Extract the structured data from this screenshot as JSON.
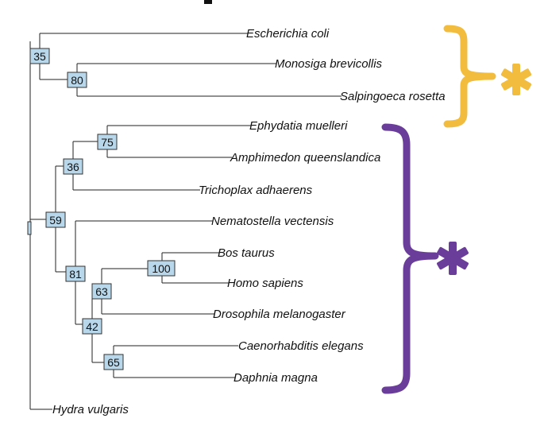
{
  "tree": {
    "leaves": [
      {
        "id": "ecoli",
        "label": "Escherichia coli"
      },
      {
        "id": "mbrev",
        "label": "Monosiga brevicollis"
      },
      {
        "id": "sros",
        "label": "Salpingoeca rosetta"
      },
      {
        "id": "ephy",
        "label": "Ephydatia muelleri"
      },
      {
        "id": "amph",
        "label": "Amphimedon queenslandica"
      },
      {
        "id": "trich",
        "label": "Trichoplax adhaerens"
      },
      {
        "id": "nema",
        "label": "Nematostella vectensis"
      },
      {
        "id": "bos",
        "label": "Bos taurus"
      },
      {
        "id": "homo",
        "label": "Homo sapiens"
      },
      {
        "id": "dros",
        "label": "Drosophila melanogaster"
      },
      {
        "id": "cael",
        "label": "Caenorhabditis elegans"
      },
      {
        "id": "daph",
        "label": "Daphnia magna"
      },
      {
        "id": "hydra",
        "label": "Hydra vulgaris"
      }
    ],
    "bootstrap": {
      "n35": "35",
      "n80": "80",
      "n75": "75",
      "n36": "36",
      "n59": "59",
      "n81": "81",
      "n100": "100",
      "n63": "63",
      "n42": "42",
      "n65": "65"
    }
  },
  "groups": [
    {
      "id": "choanoflagellates",
      "marker": "*",
      "color": "#f2bc3e"
    },
    {
      "id": "metazoa",
      "marker": "*",
      "color": "#6a3d9a"
    }
  ]
}
